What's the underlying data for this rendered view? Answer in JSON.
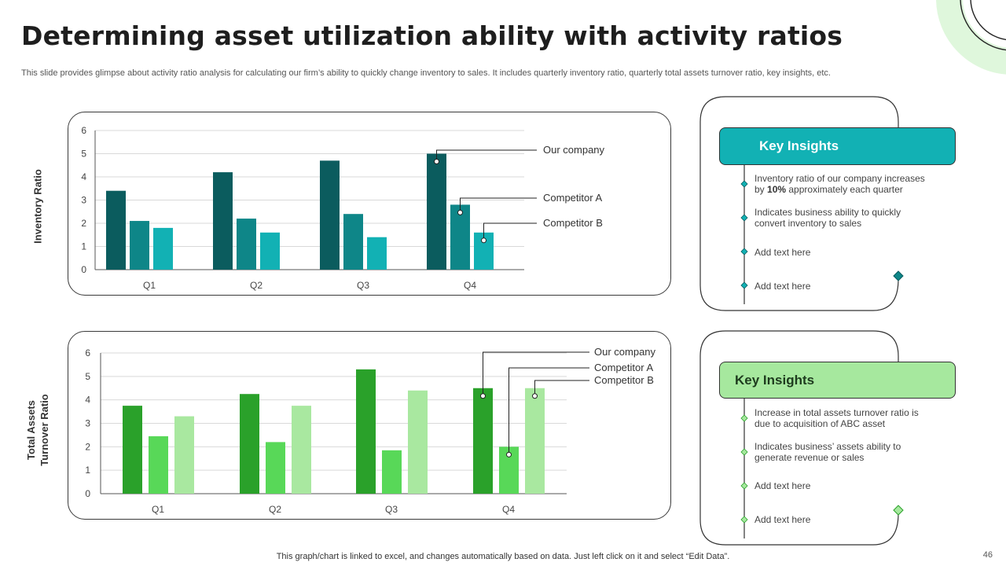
{
  "title": "Determining asset utilization ability with activity ratios",
  "subtitle": "This slide provides glimpse about activity ratio analysis for calculating our firm’s ability to quickly change inventory to sales. It includes quarterly inventory ratio, quarterly total assets turnover ratio, key insights, etc.",
  "footer_note": "This graph/chart is linked to excel,  and changes automatically based on data. Just left click on it and select “Edit Data”.",
  "page_number": "46",
  "colors": {
    "teal_dark": "#0b5c5e",
    "teal_mid": "#0e8688",
    "teal_light": "#12b1b4",
    "green_dark": "#2aa12a",
    "green_mid": "#58d858",
    "green_light": "#a9e8a0",
    "teal_header": "#12b1b4",
    "green_header": "#a6e89e",
    "deco_green": "#dff7dc"
  },
  "chart_data": [
    {
      "type": "bar",
      "title": "",
      "ylabel": "Inventory Ratio",
      "xlabel": "",
      "categories": [
        "Q1",
        "Q2",
        "Q3",
        "Q4"
      ],
      "ylim": [
        0,
        6
      ],
      "yticks": [
        "0",
        "1",
        "2",
        "3",
        "4",
        "5",
        "6"
      ],
      "series": [
        {
          "name": "Our company",
          "values": [
            3.4,
            4.2,
            4.7,
            5.0
          ]
        },
        {
          "name": "Competitor A",
          "values": [
            2.1,
            2.2,
            2.4,
            2.8
          ]
        },
        {
          "name": "Competitor B",
          "values": [
            1.8,
            1.6,
            1.4,
            1.6
          ]
        }
      ],
      "grid": true,
      "legend": "callouts-right"
    },
    {
      "type": "bar",
      "title": "",
      "ylabel": "Total Assets Turnover Ratio",
      "ylabel_lines": [
        "Total Assets",
        "Turnover Ratio"
      ],
      "xlabel": "",
      "categories": [
        "Q1",
        "Q2",
        "Q3",
        "Q4"
      ],
      "ylim": [
        0,
        6
      ],
      "yticks": [
        "0",
        "1",
        "2",
        "3",
        "4",
        "5",
        "6"
      ],
      "series": [
        {
          "name": "Our company",
          "values": [
            3.75,
            4.25,
            5.3,
            4.5
          ]
        },
        {
          "name": "Competitor A",
          "values": [
            2.45,
            2.2,
            1.85,
            2.0
          ]
        },
        {
          "name": "Competitor B",
          "values": [
            3.3,
            3.75,
            4.4,
            4.5
          ]
        }
      ],
      "grid": true,
      "legend": "callouts-top-right"
    }
  ],
  "insights": [
    {
      "header": "Key Insights",
      "items": [
        {
          "pre": "Inventory ratio of our company increases by ",
          "bold": "10%",
          "post": " approximately each quarter"
        },
        {
          "pre": "Indicates business ability to quickly convert inventory to sales",
          "bold": "",
          "post": ""
        },
        {
          "pre": "Add text here",
          "bold": "",
          "post": ""
        },
        {
          "pre": "Add text here",
          "bold": "",
          "post": ""
        }
      ]
    },
    {
      "header": "Key Insights",
      "items": [
        {
          "pre": "Increase in total assets turnover ratio is due to acquisition of ABC asset",
          "bold": "",
          "post": ""
        },
        {
          "pre": "Indicates business’ assets ability to generate revenue or sales",
          "bold": "",
          "post": ""
        },
        {
          "pre": "Add text here",
          "bold": "",
          "post": ""
        },
        {
          "pre": "Add text here",
          "bold": "",
          "post": ""
        }
      ]
    }
  ]
}
